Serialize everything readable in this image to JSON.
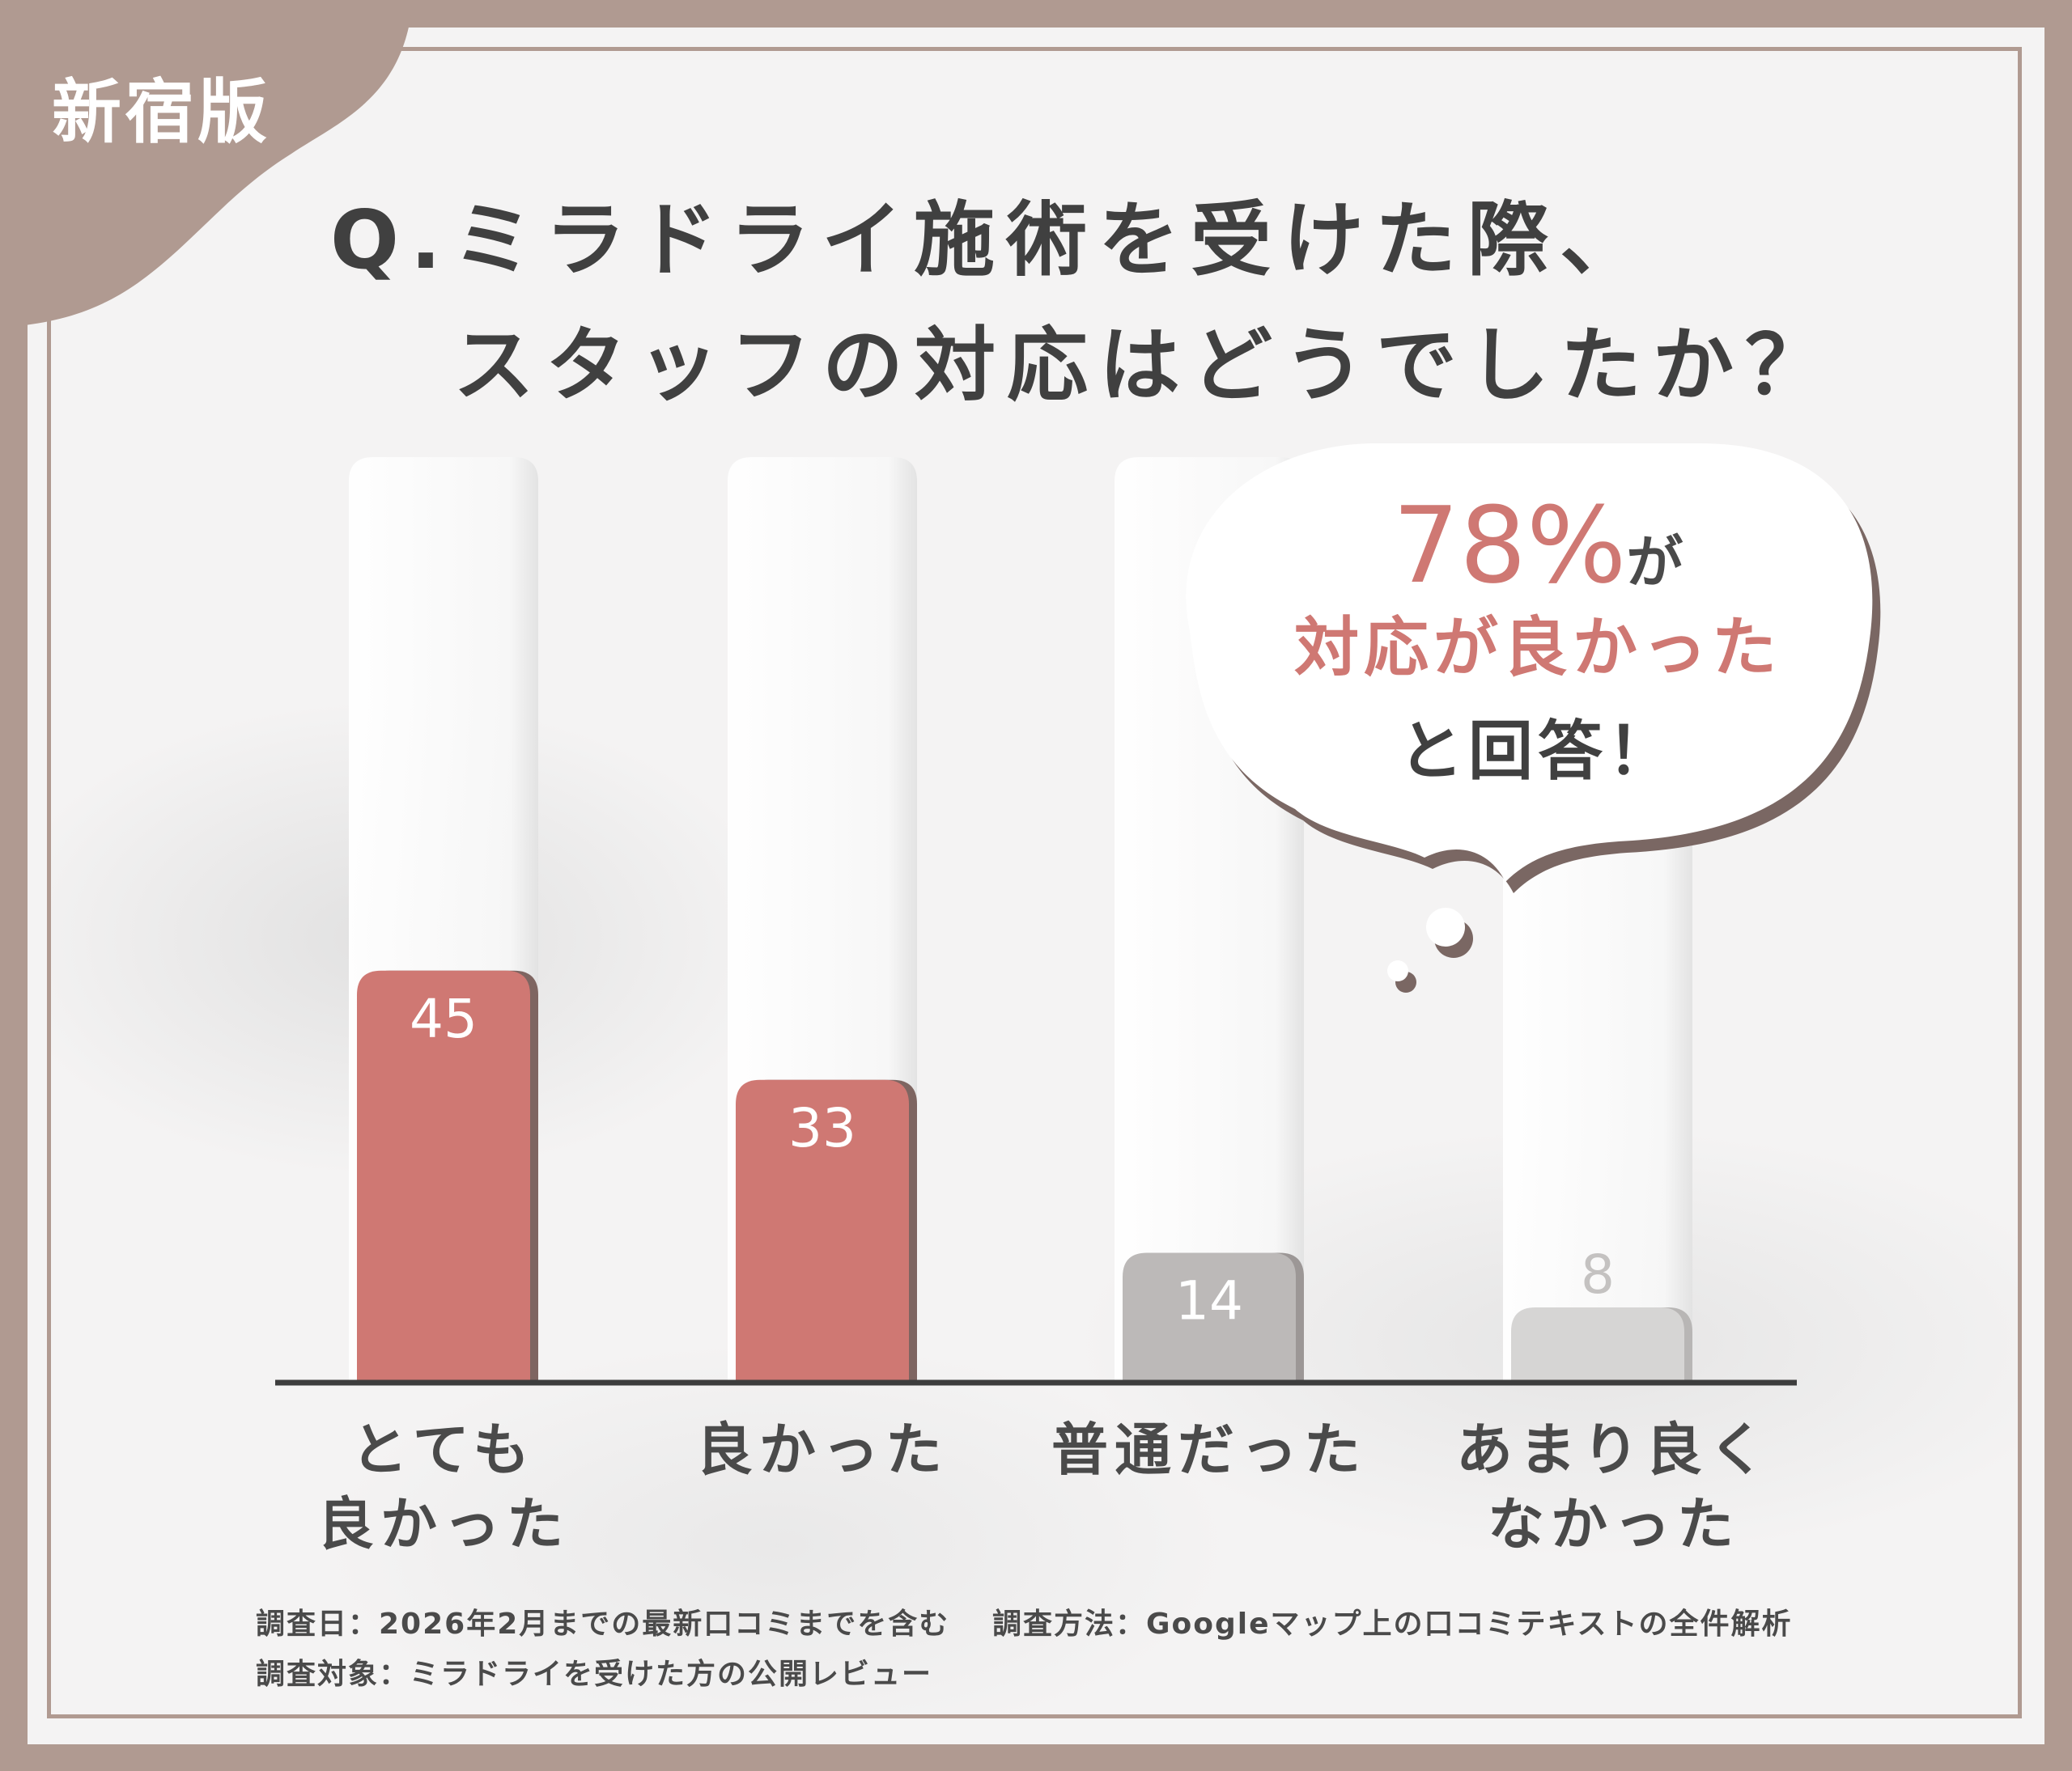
{
  "badge": {
    "label": "新宿版"
  },
  "header": {
    "title_line1": "Q.ミラドライ施術を受けた際、",
    "title_line2": "スタッフの対応はどうでしたか？"
  },
  "callout": {
    "percent": "78%",
    "suffix": "が",
    "line2": "対応が良かった",
    "line3": "と回答！"
  },
  "notes": {
    "date": "調査日：2026年2月までの最新口コミまでを含む",
    "method": "調査方法：Googleマップ上の口コミテキストの全件解析",
    "target": "調査対象：ミラドライを受けた方の公開レビュー"
  },
  "colors": {
    "frame": "#b09a91",
    "positive_bar": "#cf7873",
    "neutral_bar": "#bcb9b8",
    "negative_bar": "#d6d5d4",
    "text": "#404040"
  },
  "chart_data": {
    "type": "bar",
    "categories": [
      "とても\n良かった",
      "良かった",
      "普通だった",
      "あまり良く\nなかった"
    ],
    "values": [
      45,
      33,
      14,
      8
    ],
    "value_labels": [
      "45",
      "33",
      "14",
      "8"
    ],
    "title": "",
    "xlabel": "",
    "ylabel": "",
    "ylim": [
      0,
      100
    ],
    "grid": false,
    "legend": "none"
  }
}
